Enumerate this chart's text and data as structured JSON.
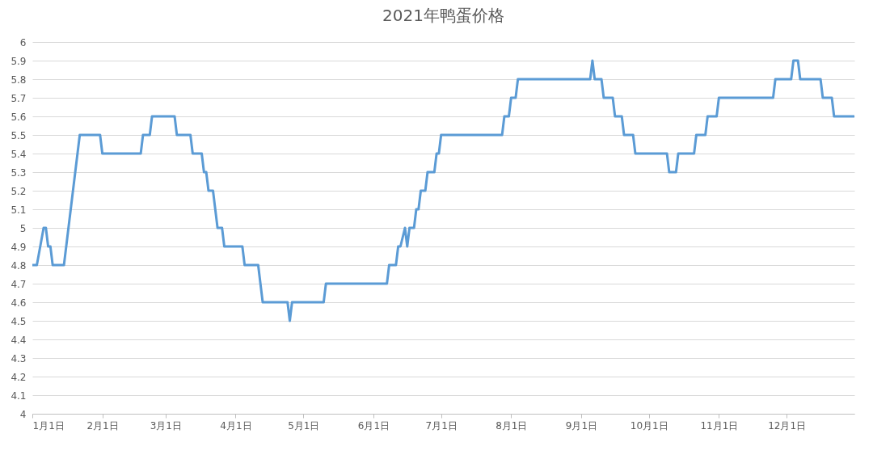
{
  "chart_data": {
    "type": "line",
    "title": "2021年鸭蛋价格",
    "x": [
      "--01-01",
      "--01-03",
      "--01-06",
      "--01-07",
      "--01-08",
      "--01-09",
      "--01-10",
      "--01-15",
      "--01-22",
      "--01-31",
      "--02-01",
      "--02-18",
      "--02-19",
      "--02-22",
      "--02-23",
      "--03-05",
      "--03-06",
      "--03-12",
      "--03-13",
      "--03-17",
      "--03-18",
      "--03-19",
      "--03-20",
      "--03-22",
      "--03-24",
      "--03-26",
      "--03-27",
      "--04-04",
      "--04-05",
      "--04-11",
      "--04-13",
      "--04-24",
      "--04-25",
      "--04-26",
      "--05-10",
      "--05-11",
      "--06-07",
      "--06-08",
      "--06-11",
      "--06-12",
      "--06-13",
      "--06-15",
      "--06-16",
      "--06-17",
      "--06-19",
      "--06-20",
      "--06-21",
      "--06-22",
      "--06-24",
      "--06-25",
      "--06-28",
      "--06-29",
      "--06-30",
      "--07-01",
      "--07-28",
      "--07-29",
      "--07-31",
      "--08-01",
      "--08-03",
      "--08-04",
      "--09-05",
      "--09-06",
      "--09-07",
      "--09-10",
      "--09-11",
      "--09-15",
      "--09-16",
      "--09-19",
      "--09-20",
      "--09-24",
      "--09-25",
      "--10-09",
      "--10-10",
      "--10-13",
      "--10-14",
      "--10-21",
      "--10-22",
      "--10-26",
      "--10-27",
      "--10-31",
      "--11-01",
      "--11-25",
      "--11-26",
      "--12-03",
      "--12-04",
      "--12-06",
      "--12-07",
      "--12-16",
      "--12-17",
      "--12-21",
      "--12-22",
      "--12-31"
    ],
    "series": [
      {
        "color": "#5b9bd5",
        "values": [
          4.8,
          4.8,
          5.0,
          5.0,
          4.9,
          4.9,
          4.8,
          4.8,
          5.5,
          5.5,
          5.4,
          5.4,
          5.5,
          5.5,
          5.6,
          5.6,
          5.5,
          5.5,
          5.4,
          5.4,
          5.3,
          5.3,
          5.2,
          5.2,
          5.0,
          5.0,
          4.9,
          4.9,
          4.8,
          4.8,
          4.6,
          4.6,
          4.5,
          4.6,
          4.6,
          4.7,
          4.7,
          4.8,
          4.8,
          4.9,
          4.9,
          5.0,
          4.9,
          5.0,
          5.0,
          5.1,
          5.1,
          5.2,
          5.2,
          5.3,
          5.3,
          5.4,
          5.4,
          5.5,
          5.5,
          5.6,
          5.6,
          5.7,
          5.7,
          5.8,
          5.8,
          5.9,
          5.8,
          5.8,
          5.7,
          5.7,
          5.6,
          5.6,
          5.5,
          5.5,
          5.4,
          5.4,
          5.3,
          5.3,
          5.4,
          5.4,
          5.5,
          5.5,
          5.6,
          5.6,
          5.7,
          5.7,
          5.8,
          5.8,
          5.9,
          5.9,
          5.8,
          5.8,
          5.7,
          5.7,
          5.6,
          5.6
        ]
      }
    ],
    "xlim": [
      "--01-01",
      "--12-31"
    ],
    "xticks": [
      {
        "value": "--01-01",
        "label": "1月1日"
      },
      {
        "value": "--02-01",
        "label": "2月1日"
      },
      {
        "value": "--03-01",
        "label": "3月1日"
      },
      {
        "value": "--04-01",
        "label": "4月1日"
      },
      {
        "value": "--05-01",
        "label": "5月1日"
      },
      {
        "value": "--06-01",
        "label": "6月1日"
      },
      {
        "value": "--07-01",
        "label": "7月1日"
      },
      {
        "value": "--08-01",
        "label": "8月1日"
      },
      {
        "value": "--09-01",
        "label": "9月1日"
      },
      {
        "value": "--10-01",
        "label": "10月1日"
      },
      {
        "value": "--11-01",
        "label": "11月1日"
      },
      {
        "value": "--12-01",
        "label": "12月1日"
      }
    ],
    "ylim": [
      4,
      6
    ],
    "yticks": [
      4,
      4.1,
      4.2,
      4.3,
      4.4,
      4.5,
      4.6,
      4.7,
      4.8,
      4.9,
      5,
      5.1,
      5.2,
      5.3,
      5.4,
      5.5,
      5.6,
      5.7,
      5.8,
      5.9,
      6
    ],
    "grid": "y",
    "legend": false,
    "marker": "none",
    "line_style": "solid"
  }
}
